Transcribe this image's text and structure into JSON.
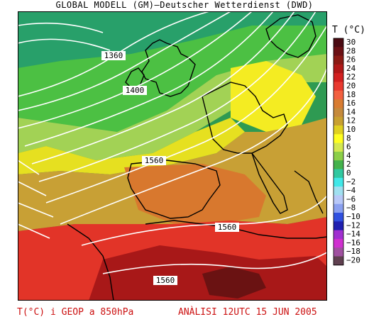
{
  "title": "GLOBAL MODELL (GM)—Deutscher Wetterdienst (DWD)",
  "footer_left": "T(°C) i GEOP a 850hPa",
  "footer_right": "ANÀLISI 12UTC 15 JUN 2005",
  "legend": {
    "title": "T (°C)",
    "labels": [
      "30",
      "28",
      "26",
      "24",
      "22",
      "20",
      "18",
      "16",
      "14",
      "12",
      "10",
      "8",
      "6",
      "4",
      "2",
      "0",
      "−2",
      "−4",
      "−6",
      "−8",
      "−10",
      "−12",
      "−14",
      "−16",
      "−18",
      "−20"
    ],
    "colors": [
      "#4a0a12",
      "#6b1014",
      "#8b1a14",
      "#b01818",
      "#d22020",
      "#e83a30",
      "#f26040",
      "#d87c32",
      "#c58a3c",
      "#c8a030",
      "#e0d020",
      "#ffff20",
      "#d4e850",
      "#8ccf48",
      "#44b24c",
      "#30c8a0",
      "#40e8e8",
      "#a0e0f0",
      "#b8c8f8",
      "#8aa0f0",
      "#3050e0",
      "#2020b0",
      "#a030d0",
      "#d030d0",
      "#a050a0",
      "#604050"
    ]
  },
  "contour_labels": [
    "1360",
    "1400",
    "1560",
    "1560",
    "1560"
  ]
}
